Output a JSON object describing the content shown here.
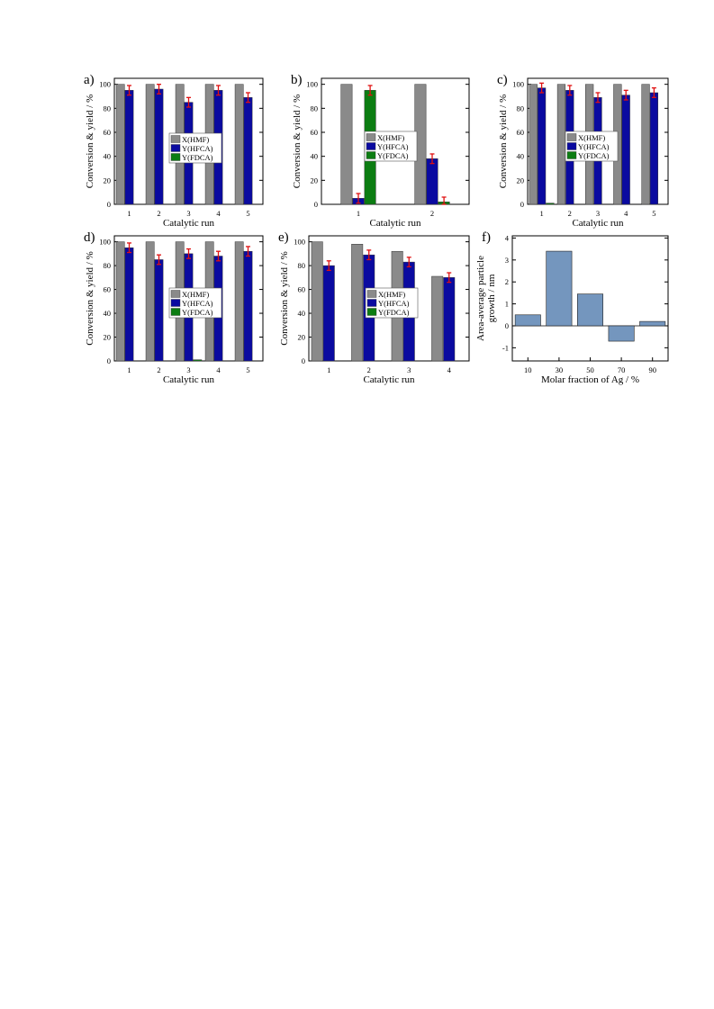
{
  "colors": {
    "hmf": "#8a8a8a",
    "hfca": "#0a0aa0",
    "fdca": "#0c7d12",
    "error": "#e01010",
    "growth": "#7496be"
  },
  "legend_labels": [
    "X(HMF)",
    "Y(HFCA)",
    "Y(FDCA)"
  ],
  "chart_data": [
    {
      "type": "bar",
      "panel_label": "a)",
      "xlabel": "Catalytic run",
      "ylabel": "Conversion & yield / %",
      "ylim": [
        0,
        105
      ],
      "yticks": [
        0,
        20,
        40,
        60,
        80,
        100
      ],
      "grid": false,
      "legend": "center",
      "categories": [
        "1",
        "2",
        "3",
        "4",
        "5"
      ],
      "series": [
        {
          "name": "X(HMF)",
          "values": [
            100,
            100,
            100,
            100,
            100
          ]
        },
        {
          "name": "Y(HFCA)",
          "values": [
            95,
            96,
            85,
            95,
            89
          ],
          "errors": [
            4,
            4,
            4,
            4,
            4
          ]
        },
        {
          "name": "Y(FDCA)",
          "values": [
            0,
            0,
            0,
            0,
            0
          ]
        }
      ]
    },
    {
      "type": "bar",
      "panel_label": "b)",
      "xlabel": "Catalytic run",
      "ylabel": "Conversion & yield / %",
      "ylim": [
        0,
        105
      ],
      "yticks": [
        0,
        20,
        40,
        60,
        80,
        100
      ],
      "grid": false,
      "legend": "center",
      "categories": [
        "1",
        "2"
      ],
      "series": [
        {
          "name": "X(HMF)",
          "values": [
            100,
            100
          ]
        },
        {
          "name": "Y(HFCA)",
          "values": [
            5,
            38
          ],
          "errors": [
            4,
            4
          ]
        },
        {
          "name": "Y(FDCA)",
          "values": [
            95,
            2
          ],
          "errors": [
            4,
            4
          ]
        }
      ]
    },
    {
      "type": "bar",
      "panel_label": "c)",
      "xlabel": "Catalytic run",
      "ylabel": "Conversion & yield / %",
      "ylim": [
        0,
        105
      ],
      "yticks": [
        0,
        20,
        40,
        60,
        80,
        100
      ],
      "grid": false,
      "legend": "left",
      "categories": [
        "1",
        "2",
        "3",
        "4",
        "5"
      ],
      "series": [
        {
          "name": "X(HMF)",
          "values": [
            100,
            100,
            100,
            100,
            100
          ]
        },
        {
          "name": "Y(HFCA)",
          "values": [
            97,
            95,
            89,
            91,
            93
          ],
          "errors": [
            4,
            4,
            4,
            4,
            4
          ]
        },
        {
          "name": "Y(FDCA)",
          "values": [
            1,
            0,
            0,
            0,
            0
          ]
        }
      ]
    },
    {
      "type": "bar",
      "panel_label": "d)",
      "xlabel": "Catalytic run",
      "ylabel": "Conversion & yield / %",
      "ylim": [
        0,
        105
      ],
      "yticks": [
        0,
        20,
        40,
        60,
        80,
        100
      ],
      "grid": false,
      "legend": "center",
      "categories": [
        "1",
        "2",
        "3",
        "4",
        "5"
      ],
      "series": [
        {
          "name": "X(HMF)",
          "values": [
            100,
            100,
            100,
            100,
            100
          ]
        },
        {
          "name": "Y(HFCA)",
          "values": [
            95,
            85,
            90,
            88,
            92
          ],
          "errors": [
            4,
            4,
            4,
            4,
            4
          ]
        },
        {
          "name": "Y(FDCA)",
          "values": [
            0,
            0,
            1,
            0,
            0
          ]
        }
      ]
    },
    {
      "type": "bar",
      "panel_label": "e)",
      "xlabel": "Catalytic run",
      "ylabel": "Conversion & yield / %",
      "ylim": [
        0,
        105
      ],
      "yticks": [
        0,
        20,
        40,
        60,
        80,
        100
      ],
      "grid": false,
      "legend": "center",
      "categories": [
        "1",
        "2",
        "3",
        "4"
      ],
      "series": [
        {
          "name": "X(HMF)",
          "values": [
            100,
            98,
            92,
            71
          ]
        },
        {
          "name": "Y(HFCA)",
          "values": [
            80,
            89,
            83,
            70
          ],
          "errors": [
            4,
            4,
            4,
            4
          ]
        },
        {
          "name": "Y(FDCA)",
          "values": [
            0,
            0,
            0,
            0
          ]
        }
      ]
    },
    {
      "type": "bar",
      "panel_label": "f)",
      "xlabel": "Molar fraction of Ag / %",
      "ylabel": "Area-average particle growth / nm",
      "ylabel_lines": [
        "Area-average particle",
        "growth / nm"
      ],
      "ylim": [
        -1.6,
        4.1
      ],
      "yticks": [
        -1,
        0,
        1,
        2,
        3,
        4
      ],
      "grid": false,
      "categories": [
        "10",
        "30",
        "50",
        "70",
        "90"
      ],
      "values": [
        0.5,
        3.4,
        1.45,
        -0.7,
        0.2
      ]
    }
  ]
}
